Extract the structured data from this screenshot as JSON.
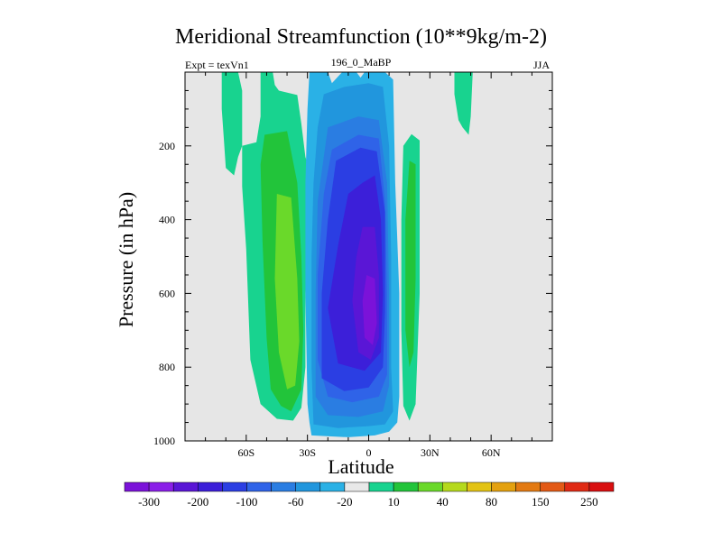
{
  "chart_data": {
    "type": "contour",
    "title": "Meridional Streamfunction (10**9kg/m-2)",
    "subtitle_left": "Expt = texVn1",
    "subtitle_center": "196_0_MaBP",
    "subtitle_right": "JJA",
    "xlabel": "Latitude",
    "ylabel": "Pressure (in hPa)",
    "xlim": [
      -90,
      90
    ],
    "ylim": [
      1000,
      0
    ],
    "x_ticks": [
      {
        "value": -60,
        "label": "60S"
      },
      {
        "value": -30,
        "label": "30S"
      },
      {
        "value": 0,
        "label": "0"
      },
      {
        "value": 30,
        "label": "30N"
      },
      {
        "value": 60,
        "label": "60N"
      }
    ],
    "y_ticks": [
      200,
      400,
      600,
      800,
      1000
    ],
    "background_color": "#e6e6e6",
    "colorbar": {
      "colors": [
        "#7b12d9",
        "#8a1fe8",
        "#5a16d6",
        "#3c1fd9",
        "#2b3ee3",
        "#2f63e8",
        "#2a7de2",
        "#2196dd",
        "#2ab1e6",
        "#e8e8e8",
        "#18d38f",
        "#22c43a",
        "#6ad92a",
        "#b5d91c",
        "#e3c314",
        "#e4a10f",
        "#e37a12",
        "#e35a16",
        "#e02a14",
        "#d90f10"
      ],
      "labels": [
        "-300",
        "-200",
        "-100",
        "-60",
        "-20",
        "10",
        "40",
        "80",
        "150",
        "250"
      ]
    },
    "contour_regions": [
      {
        "fill": "#18d38f",
        "pts": [
          [
            -53,
            0
          ],
          [
            -47,
            0
          ],
          [
            -46,
            35
          ],
          [
            -44,
            50
          ],
          [
            -35,
            62
          ],
          [
            -33,
            140
          ],
          [
            -31,
            230
          ],
          [
            -28,
            280
          ],
          [
            -30,
            400
          ],
          [
            -31,
            600
          ],
          [
            -31,
            800
          ],
          [
            -33,
            910
          ],
          [
            -37,
            945
          ],
          [
            -45,
            940
          ],
          [
            -53,
            900
          ],
          [
            -58,
            780
          ],
          [
            -60,
            480
          ],
          [
            -62,
            310
          ],
          [
            -62,
            200
          ],
          [
            -55,
            190
          ],
          [
            -53,
            120
          ]
        ]
      },
      {
        "fill": "#22c43a",
        "pts": [
          [
            -51,
            170
          ],
          [
            -40,
            160
          ],
          [
            -35,
            300
          ],
          [
            -33,
            500
          ],
          [
            -32,
            700
          ],
          [
            -33,
            860
          ],
          [
            -38,
            920
          ],
          [
            -43,
            905
          ],
          [
            -48,
            860
          ],
          [
            -50,
            720
          ],
          [
            -52,
            460
          ],
          [
            -53,
            250
          ]
        ]
      },
      {
        "fill": "#6ad92a",
        "pts": [
          [
            -45,
            330
          ],
          [
            -38,
            340
          ],
          [
            -35,
            560
          ],
          [
            -34,
            730
          ],
          [
            -36,
            850
          ],
          [
            -40,
            860
          ],
          [
            -44,
            760
          ],
          [
            -46,
            560
          ]
        ]
      },
      {
        "fill": "#2ab1e6",
        "pts": [
          [
            -29,
            0
          ],
          [
            -20,
            0
          ],
          [
            -18,
            30
          ],
          [
            -13,
            0
          ],
          [
            -6,
            0
          ],
          [
            -4,
            15
          ],
          [
            -2,
            0
          ],
          [
            8,
            0
          ],
          [
            12,
            20
          ],
          [
            13,
            300
          ],
          [
            15,
            600
          ],
          [
            15,
            880
          ],
          [
            14,
            950
          ],
          [
            10,
            975
          ],
          [
            3,
            985
          ],
          [
            -10,
            990
          ],
          [
            -28,
            985
          ],
          [
            -29,
            950
          ],
          [
            -30,
            900
          ],
          [
            -31,
            600
          ],
          [
            -31,
            300
          ],
          [
            -30,
            100
          ]
        ]
      },
      {
        "fill": "#2196dd",
        "pts": [
          [
            -22,
            60
          ],
          [
            -12,
            40
          ],
          [
            0,
            30
          ],
          [
            7,
            40
          ],
          [
            10,
            200
          ],
          [
            11,
            500
          ],
          [
            11,
            800
          ],
          [
            12,
            920
          ],
          [
            8,
            955
          ],
          [
            0,
            960
          ],
          [
            -15,
            965
          ],
          [
            -27,
            955
          ],
          [
            -28,
            800
          ],
          [
            -28,
            500
          ],
          [
            -27,
            300
          ],
          [
            -25,
            150
          ]
        ]
      },
      {
        "fill": "#2a7de2",
        "pts": [
          [
            -20,
            150
          ],
          [
            -5,
            120
          ],
          [
            5,
            130
          ],
          [
            9,
            300
          ],
          [
            10,
            600
          ],
          [
            10,
            850
          ],
          [
            7,
            920
          ],
          [
            -5,
            935
          ],
          [
            -20,
            930
          ],
          [
            -26,
            880
          ],
          [
            -26,
            600
          ],
          [
            -25,
            350
          ]
        ]
      },
      {
        "fill": "#2f63e8",
        "pts": [
          [
            -18,
            210
          ],
          [
            -5,
            170
          ],
          [
            5,
            180
          ],
          [
            8,
            350
          ],
          [
            9,
            600
          ],
          [
            9,
            820
          ],
          [
            5,
            880
          ],
          [
            -8,
            895
          ],
          [
            -20,
            880
          ],
          [
            -25,
            780
          ],
          [
            -25,
            550
          ],
          [
            -22,
            330
          ]
        ]
      },
      {
        "fill": "#2b3ee3",
        "pts": [
          [
            -16,
            240
          ],
          [
            -4,
            205
          ],
          [
            4,
            215
          ],
          [
            8,
            380
          ],
          [
            8,
            650
          ],
          [
            7,
            800
          ],
          [
            0,
            855
          ],
          [
            -12,
            865
          ],
          [
            -23,
            830
          ],
          [
            -23,
            600
          ],
          [
            -20,
            400
          ]
        ]
      },
      {
        "fill": "#3c1fd9",
        "pts": [
          [
            -10,
            330
          ],
          [
            -3,
            300
          ],
          [
            3,
            280
          ],
          [
            6,
            400
          ],
          [
            7,
            600
          ],
          [
            6,
            760
          ],
          [
            -2,
            810
          ],
          [
            -15,
            790
          ],
          [
            -20,
            640
          ],
          [
            -15,
            470
          ]
        ]
      },
      {
        "fill": "#5a16d6",
        "pts": [
          [
            -3,
            420
          ],
          [
            3,
            420
          ],
          [
            5,
            550
          ],
          [
            5,
            720
          ],
          [
            1,
            780
          ],
          [
            -5,
            760
          ],
          [
            -8,
            620
          ],
          [
            -6,
            500
          ]
        ]
      },
      {
        "fill": "#7b12d9",
        "pts": [
          [
            -1,
            550
          ],
          [
            3,
            560
          ],
          [
            4,
            680
          ],
          [
            2,
            740
          ],
          [
            -2,
            720
          ],
          [
            -3,
            620
          ]
        ]
      },
      {
        "fill": "#18d38f",
        "pts": [
          [
            21,
            168
          ],
          [
            25,
            185
          ],
          [
            25,
            600
          ],
          [
            23,
            900
          ],
          [
            20,
            945
          ],
          [
            17,
            905
          ],
          [
            16,
            700
          ],
          [
            16,
            400
          ],
          [
            17,
            200
          ]
        ]
      },
      {
        "fill": "#22c43a",
        "pts": [
          [
            20,
            240
          ],
          [
            23,
            250
          ],
          [
            23,
            560
          ],
          [
            22,
            760
          ],
          [
            20,
            800
          ],
          [
            18,
            700
          ],
          [
            18,
            400
          ]
        ]
      },
      {
        "fill": "#18d38f",
        "pts": [
          [
            42,
            0
          ],
          [
            51,
            0
          ],
          [
            50,
            120
          ],
          [
            49,
            170
          ],
          [
            46,
            150
          ],
          [
            44,
            130
          ],
          [
            42,
            60
          ]
        ]
      },
      {
        "fill": "#18d38f",
        "pts": [
          [
            -72,
            0
          ],
          [
            -64,
            0
          ],
          [
            -62,
            50
          ],
          [
            -62,
            200
          ],
          [
            -64,
            230
          ],
          [
            -66,
            280
          ],
          [
            -70,
            260
          ],
          [
            -71,
            180
          ],
          [
            -72,
            100
          ]
        ]
      }
    ]
  }
}
